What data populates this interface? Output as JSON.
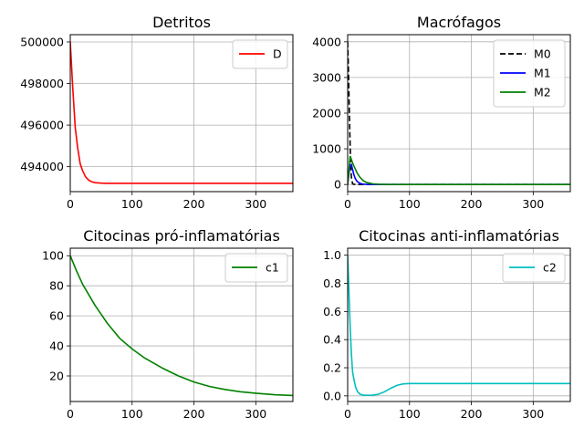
{
  "chart_data": [
    {
      "type": "line",
      "title": "Detritos",
      "xlim": [
        0,
        360
      ],
      "ylim": [
        492800,
        500350
      ],
      "xticks": [
        0,
        100,
        200,
        300
      ],
      "yticks": [
        494000,
        496000,
        498000,
        500000
      ],
      "legend": "top-right",
      "grid": true,
      "series": [
        {
          "name": "D",
          "color": "#ff0000",
          "dash": "solid",
          "x": [
            0,
            4,
            8,
            12,
            16,
            20,
            25,
            30,
            35,
            40,
            50,
            60,
            80,
            100,
            150,
            200,
            250,
            300,
            360
          ],
          "y": [
            500000,
            497800,
            495900,
            494900,
            494150,
            493800,
            493500,
            493350,
            493270,
            493230,
            493210,
            493200,
            493200,
            493200,
            493200,
            493200,
            493200,
            493200,
            493200
          ]
        }
      ]
    },
    {
      "type": "line",
      "title": "Macrófagos",
      "xlim": [
        0,
        360
      ],
      "ylim": [
        -200,
        4200
      ],
      "xticks": [
        0,
        100,
        200,
        300
      ],
      "yticks": [
        0,
        1000,
        2000,
        3000,
        4000
      ],
      "legend": "top-right",
      "grid": true,
      "series": [
        {
          "name": "M0",
          "color": "#000000",
          "dash": "dashed",
          "x": [
            0,
            1,
            2,
            3,
            4,
            5,
            6,
            8,
            10,
            15,
            20,
            30,
            50,
            100,
            200,
            300,
            360
          ],
          "y": [
            4000,
            3400,
            2600,
            1800,
            1100,
            550,
            200,
            20,
            5,
            0,
            0,
            0,
            0,
            0,
            0,
            0,
            0
          ]
        },
        {
          "name": "M1",
          "color": "#0000ff",
          "dash": "solid",
          "x": [
            0,
            2,
            4,
            6,
            8,
            10,
            12,
            15,
            20,
            25,
            30,
            40,
            50,
            100,
            200,
            300,
            360
          ],
          "y": [
            0,
            300,
            550,
            560,
            420,
            280,
            180,
            90,
            30,
            10,
            5,
            0,
            0,
            0,
            0,
            0,
            0
          ],
          "_note": ""
        },
        {
          "name": "M2",
          "color": "#008000",
          "dash": "solid",
          "x": [
            0,
            2,
            4,
            6,
            8,
            10,
            12,
            15,
            20,
            25,
            30,
            40,
            50,
            60,
            100,
            200,
            300,
            360
          ],
          "y": [
            0,
            400,
            800,
            700,
            600,
            520,
            450,
            330,
            200,
            110,
            60,
            20,
            8,
            3,
            0,
            0,
            0,
            0
          ]
        }
      ]
    },
    {
      "type": "line",
      "title": "Citocinas pró-inflamatórias",
      "xlim": [
        0,
        360
      ],
      "ylim": [
        3,
        105
      ],
      "xticks": [
        0,
        100,
        200,
        300
      ],
      "yticks": [
        20,
        40,
        60,
        80,
        100
      ],
      "legend": "top-right",
      "grid": true,
      "series": [
        {
          "name": "c1",
          "color": "#008000",
          "dash": "solid",
          "x": [
            0,
            10,
            20,
            30,
            40,
            50,
            60,
            80,
            100,
            120,
            150,
            175,
            200,
            225,
            250,
            275,
            300,
            330,
            360
          ],
          "y": [
            100,
            90,
            81,
            74,
            67,
            61,
            55,
            45,
            38,
            32,
            25,
            20,
            16,
            13,
            11,
            9.5,
            8.5,
            7.5,
            7
          ]
        }
      ]
    },
    {
      "type": "line",
      "title": "Citocinas anti-inflamatórias",
      "xlim": [
        0,
        360
      ],
      "ylim": [
        -0.04,
        1.05
      ],
      "xticks": [
        0,
        100,
        200,
        300
      ],
      "yticks": [
        0.0,
        0.2,
        0.4,
        0.6,
        0.8,
        1.0
      ],
      "legend": "top-right",
      "grid": true,
      "series": [
        {
          "name": "c2",
          "color": "#00bfbf",
          "dash": "solid",
          "x": [
            0,
            2,
            4,
            6,
            8,
            10,
            13,
            16,
            20,
            25,
            30,
            40,
            50,
            60,
            70,
            80,
            90,
            100,
            120,
            150,
            200,
            300,
            360
          ],
          "y": [
            1.0,
            0.75,
            0.5,
            0.3,
            0.17,
            0.12,
            0.06,
            0.03,
            0.012,
            0.006,
            0.004,
            0.005,
            0.012,
            0.03,
            0.055,
            0.075,
            0.085,
            0.088,
            0.088,
            0.088,
            0.088,
            0.088,
            0.088
          ]
        }
      ]
    }
  ]
}
